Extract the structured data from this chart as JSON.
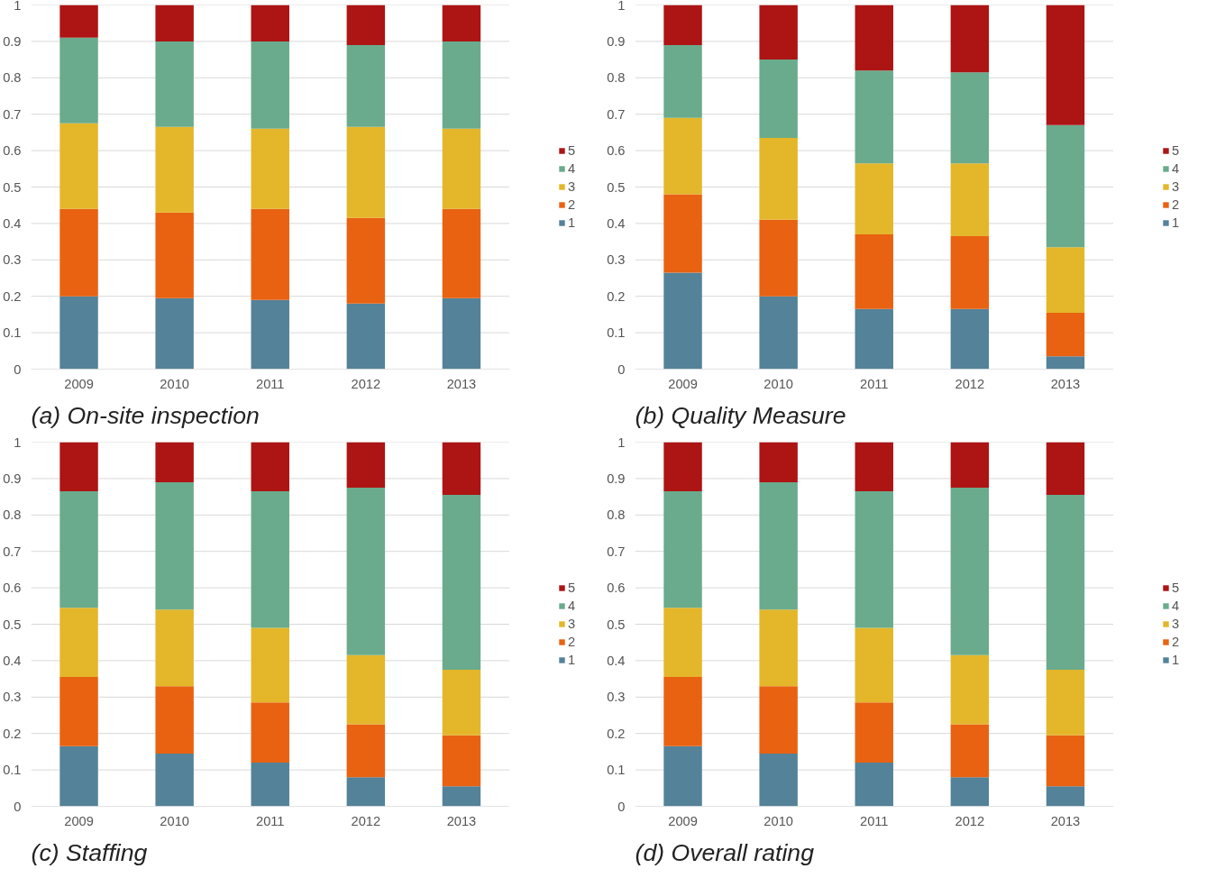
{
  "chart_data": [
    {
      "type": "bar",
      "stacked": true,
      "title": "(a) On-site inspection",
      "categories": [
        "2009",
        "2010",
        "2011",
        "2012",
        "2013"
      ],
      "ylim": [
        0,
        1
      ],
      "yticks": [
        0,
        0.1,
        0.2,
        0.3,
        0.4,
        0.5,
        0.6,
        0.7,
        0.8,
        0.9,
        1
      ],
      "grid": "y",
      "legend": "right",
      "series": [
        {
          "name": "1",
          "color": "#538299",
          "values": [
            0.2,
            0.195,
            0.19,
            0.18,
            0.195
          ]
        },
        {
          "name": "2",
          "color": "#e86212",
          "values": [
            0.24,
            0.235,
            0.25,
            0.235,
            0.245
          ]
        },
        {
          "name": "3",
          "color": "#e4b62a",
          "values": [
            0.235,
            0.235,
            0.22,
            0.25,
            0.22
          ]
        },
        {
          "name": "4",
          "color": "#69ab8c",
          "values": [
            0.235,
            0.235,
            0.24,
            0.225,
            0.24
          ]
        },
        {
          "name": "5",
          "color": "#ad1414",
          "values": [
            0.09,
            0.1,
            0.1,
            0.11,
            0.1
          ]
        }
      ]
    },
    {
      "type": "bar",
      "stacked": true,
      "title": "(b) Quality Measure",
      "categories": [
        "2009",
        "2010",
        "2011",
        "2012",
        "2013"
      ],
      "ylim": [
        0,
        1
      ],
      "yticks": [
        0,
        0.1,
        0.2,
        0.3,
        0.4,
        0.5,
        0.6,
        0.7,
        0.8,
        0.9,
        1
      ],
      "grid": "y",
      "legend": "right",
      "series": [
        {
          "name": "1",
          "color": "#538299",
          "values": [
            0.265,
            0.2,
            0.165,
            0.165,
            0.035
          ]
        },
        {
          "name": "2",
          "color": "#e86212",
          "values": [
            0.215,
            0.21,
            0.205,
            0.2,
            0.12
          ]
        },
        {
          "name": "3",
          "color": "#e4b62a",
          "values": [
            0.21,
            0.225,
            0.195,
            0.2,
            0.18
          ]
        },
        {
          "name": "4",
          "color": "#69ab8c",
          "values": [
            0.2,
            0.215,
            0.255,
            0.25,
            0.335
          ]
        },
        {
          "name": "5",
          "color": "#ad1414",
          "values": [
            0.11,
            0.15,
            0.18,
            0.185,
            0.33
          ]
        }
      ]
    },
    {
      "type": "bar",
      "stacked": true,
      "title": "(c) Staffing",
      "categories": [
        "2009",
        "2010",
        "2011",
        "2012",
        "2013"
      ],
      "ylim": [
        0,
        1
      ],
      "yticks": [
        0,
        0.1,
        0.2,
        0.3,
        0.4,
        0.5,
        0.6,
        0.7,
        0.8,
        0.9,
        1
      ],
      "grid": "y",
      "legend": "right",
      "series": [
        {
          "name": "1",
          "color": "#538299",
          "values": [
            0.165,
            0.145,
            0.12,
            0.08,
            0.055
          ]
        },
        {
          "name": "2",
          "color": "#e86212",
          "values": [
            0.19,
            0.185,
            0.165,
            0.145,
            0.14
          ]
        },
        {
          "name": "3",
          "color": "#e4b62a",
          "values": [
            0.19,
            0.21,
            0.205,
            0.19,
            0.18
          ]
        },
        {
          "name": "4",
          "color": "#69ab8c",
          "values": [
            0.32,
            0.35,
            0.375,
            0.46,
            0.48
          ]
        },
        {
          "name": "5",
          "color": "#ad1414",
          "values": [
            0.135,
            0.11,
            0.135,
            0.125,
            0.145
          ]
        }
      ]
    },
    {
      "type": "bar",
      "stacked": true,
      "title": "(d) Overall rating",
      "categories": [
        "2009",
        "2010",
        "2011",
        "2012",
        "2013"
      ],
      "ylim": [
        0,
        1
      ],
      "yticks": [
        0,
        0.1,
        0.2,
        0.3,
        0.4,
        0.5,
        0.6,
        0.7,
        0.8,
        0.9,
        1
      ],
      "grid": "y",
      "legend": "right",
      "series": [
        {
          "name": "1",
          "color": "#538299",
          "values": [
            0.165,
            0.145,
            0.12,
            0.08,
            0.055
          ]
        },
        {
          "name": "2",
          "color": "#e86212",
          "values": [
            0.19,
            0.185,
            0.165,
            0.145,
            0.14
          ]
        },
        {
          "name": "3",
          "color": "#e4b62a",
          "values": [
            0.19,
            0.21,
            0.205,
            0.19,
            0.18
          ]
        },
        {
          "name": "4",
          "color": "#69ab8c",
          "values": [
            0.32,
            0.35,
            0.375,
            0.46,
            0.48
          ]
        },
        {
          "name": "5",
          "color": "#ad1414",
          "values": [
            0.135,
            0.11,
            0.135,
            0.125,
            0.145
          ]
        }
      ]
    }
  ]
}
